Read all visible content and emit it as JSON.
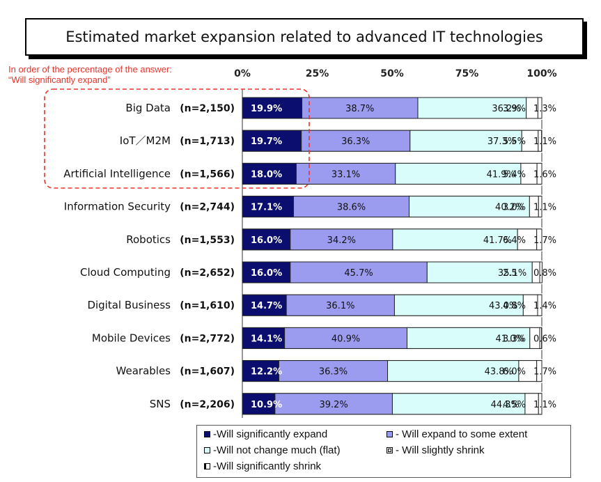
{
  "title": "Estimated market expansion related to advanced IT technologies",
  "note_lines": [
    "In order of the percentage of the answer:",
    "“Will significantly expand”"
  ],
  "colors": {
    "significantly_expand": "#0b0e6e",
    "expand_some": "#9b9cf0",
    "flat": "#d9fdfb",
    "slightly_shrink": "#ffffff",
    "significantly_shrink": "#ffffff",
    "note_red": "#e8332a"
  },
  "legend": {
    "items": [
      {
        "label": "-Will significantly expand",
        "color": "#0b0e6e"
      },
      {
        "label": "- Will expand to some extent",
        "color": "#9b9cf0"
      },
      {
        "label": "-Will not change much (flat)",
        "color": "#d9fdfb"
      },
      {
        "label": "- Will slightly shrink",
        "color": "#ffffff"
      },
      {
        "label": "-Will significantly shrink",
        "color": "#ffffff"
      }
    ]
  },
  "chart_data": {
    "type": "bar",
    "orientation": "horizontal",
    "stacked": true,
    "title": "Estimated market expansion related to advanced IT technologies",
    "xlim": [
      0,
      100
    ],
    "x_ticks": [
      "0%",
      "25%",
      "50%",
      "75%",
      "100%"
    ],
    "categories": [
      {
        "name": "Big Data",
        "n": "(n=2,150)"
      },
      {
        "name": "IoT／M2M",
        "n": "(n=1,713)"
      },
      {
        "name": "Artificial Intelligence",
        "n": "(n=1,566)"
      },
      {
        "name": "Information Security",
        "n": "(n=2,744)"
      },
      {
        "name": "Robotics",
        "n": "(n=1,553)"
      },
      {
        "name": "Cloud Computing",
        "n": "(n=2,652)"
      },
      {
        "name": "Digital Business",
        "n": "(n=1,610)"
      },
      {
        "name": "Mobile Devices",
        "n": "(n=2,772)"
      },
      {
        "name": "Wearables",
        "n": "(n=1,607)"
      },
      {
        "name": "SNS",
        "n": "(n=2,206)"
      }
    ],
    "series": [
      {
        "name": "Will significantly expand",
        "values": [
          19.9,
          19.7,
          18.0,
          17.1,
          16.0,
          16.0,
          14.7,
          14.1,
          12.2,
          10.9
        ],
        "labels": [
          "19.9%",
          "19.7%",
          "18.0%",
          "17.1%",
          "16.0%",
          "16.0%",
          "14.7%",
          "14.1%",
          "12.2%",
          "10.9%"
        ]
      },
      {
        "name": "Will expand to some extent",
        "values": [
          38.7,
          36.3,
          33.1,
          38.6,
          34.2,
          45.7,
          36.1,
          40.9,
          36.3,
          39.2
        ],
        "labels": [
          "38.7%",
          "36.3%",
          "33.1%",
          "38.6%",
          "34.2%",
          "45.7%",
          "36.1%",
          "40.9%",
          "36.3%",
          "39.2%"
        ]
      },
      {
        "name": "Will not change much (flat)",
        "values": [
          36.2,
          37.3,
          41.9,
          40.2,
          41.7,
          35.1,
          43.0,
          41.0,
          43.8,
          44.3
        ],
        "labels": [
          "36.2%",
          "37.3%",
          "41.9%",
          "40.2%",
          "41.7%",
          "35.1%",
          "43.0%",
          "41.0%",
          "43.8%",
          "44.3%"
        ]
      },
      {
        "name": "Will slightly shrink",
        "values": [
          3.9,
          5.5,
          5.4,
          3.0,
          6.4,
          2.5,
          4.8,
          3.3,
          6.0,
          4.5
        ],
        "labels": [
          "3.9%",
          "5.5%",
          "5.4%",
          "3.0%",
          "6.4%",
          "2.5",
          "4.8%",
          "3.3%",
          "6.0%",
          "4.5%"
        ]
      },
      {
        "name": "Will significantly shrink",
        "values": [
          1.3,
          1.1,
          1.6,
          1.1,
          1.7,
          0.8,
          1.4,
          0.6,
          1.7,
          1.1
        ],
        "labels": [
          "1.3%",
          "1.1%",
          "1.6%",
          "1.1%",
          "1.7%",
          "0.8%",
          "1.4%",
          "0.6%",
          "1.7%",
          "1.1%"
        ]
      }
    ],
    "highlight": {
      "categories": [
        "Big Data",
        "IoT／M2M",
        "Artificial Intelligence"
      ],
      "style": "dashed red box"
    },
    "grid": false,
    "legend_position": "bottom"
  }
}
